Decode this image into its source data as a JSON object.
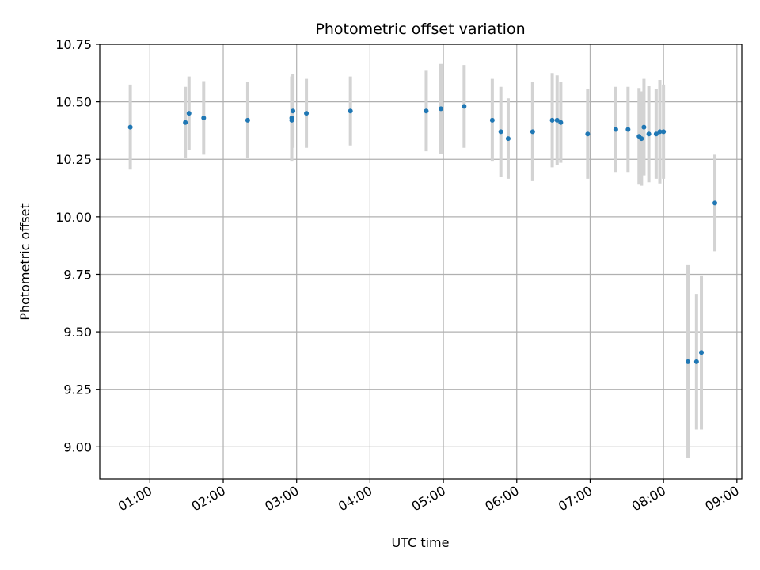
{
  "chart_data": {
    "type": "scatter",
    "title": "Photometric offset variation",
    "xlabel": "UTC time",
    "ylabel": "Photometric offset",
    "x_unit": "UTC time (HH:MM)",
    "xlim": [
      "00:19",
      "09:04"
    ],
    "ylim": [
      8.86,
      10.75
    ],
    "x_ticks": [
      "01:00",
      "02:00",
      "03:00",
      "04:00",
      "05:00",
      "06:00",
      "07:00",
      "08:00",
      "09:00"
    ],
    "y_ticks": [
      "9.00",
      "9.25",
      "9.50",
      "9.75",
      "10.00",
      "10.25",
      "10.50",
      "10.75"
    ],
    "grid": true,
    "marker_color": "#1f77b4",
    "errorbar_color": "#d3d3d3",
    "points": [
      {
        "x": "00:44",
        "y": 10.39,
        "err": 0.185
      },
      {
        "x": "01:29",
        "y": 10.41,
        "err": 0.155
      },
      {
        "x": "01:32",
        "y": 10.45,
        "err": 0.16
      },
      {
        "x": "01:44",
        "y": 10.43,
        "err": 0.16
      },
      {
        "x": "02:20",
        "y": 10.42,
        "err": 0.165
      },
      {
        "x": "02:56",
        "y": 10.43,
        "err": 0.18
      },
      {
        "x": "02:56",
        "y": 10.42,
        "err": 0.18
      },
      {
        "x": "02:57",
        "y": 10.46,
        "err": 0.16
      },
      {
        "x": "03:08",
        "y": 10.45,
        "err": 0.15
      },
      {
        "x": "03:44",
        "y": 10.46,
        "err": 0.15
      },
      {
        "x": "04:46",
        "y": 10.46,
        "err": 0.175
      },
      {
        "x": "04:58",
        "y": 10.47,
        "err": 0.195
      },
      {
        "x": "05:17",
        "y": 10.48,
        "err": 0.18
      },
      {
        "x": "05:40",
        "y": 10.42,
        "err": 0.18
      },
      {
        "x": "05:47",
        "y": 10.37,
        "err": 0.195
      },
      {
        "x": "05:53",
        "y": 10.34,
        "err": 0.175
      },
      {
        "x": "06:13",
        "y": 10.37,
        "err": 0.215
      },
      {
        "x": "06:29",
        "y": 10.42,
        "err": 0.205
      },
      {
        "x": "06:33",
        "y": 10.42,
        "err": 0.195
      },
      {
        "x": "06:36",
        "y": 10.41,
        "err": 0.175
      },
      {
        "x": "06:58",
        "y": 10.36,
        "err": 0.195
      },
      {
        "x": "07:21",
        "y": 10.38,
        "err": 0.185
      },
      {
        "x": "07:31",
        "y": 10.38,
        "err": 0.185
      },
      {
        "x": "07:40",
        "y": 10.35,
        "err": 0.21
      },
      {
        "x": "07:42",
        "y": 10.34,
        "err": 0.205
      },
      {
        "x": "07:44",
        "y": 10.39,
        "err": 0.21
      },
      {
        "x": "07:48",
        "y": 10.36,
        "err": 0.21
      },
      {
        "x": "07:54",
        "y": 10.36,
        "err": 0.195
      },
      {
        "x": "07:57",
        "y": 10.37,
        "err": 0.225
      },
      {
        "x": "08:00",
        "y": 10.37,
        "err": 0.205
      },
      {
        "x": "08:20",
        "y": 9.37,
        "err": 0.42
      },
      {
        "x": "08:27",
        "y": 9.37,
        "err": 0.295
      },
      {
        "x": "08:31",
        "y": 9.41,
        "err": 0.335
      },
      {
        "x": "08:42",
        "y": 10.06,
        "err": 0.21
      }
    ]
  }
}
